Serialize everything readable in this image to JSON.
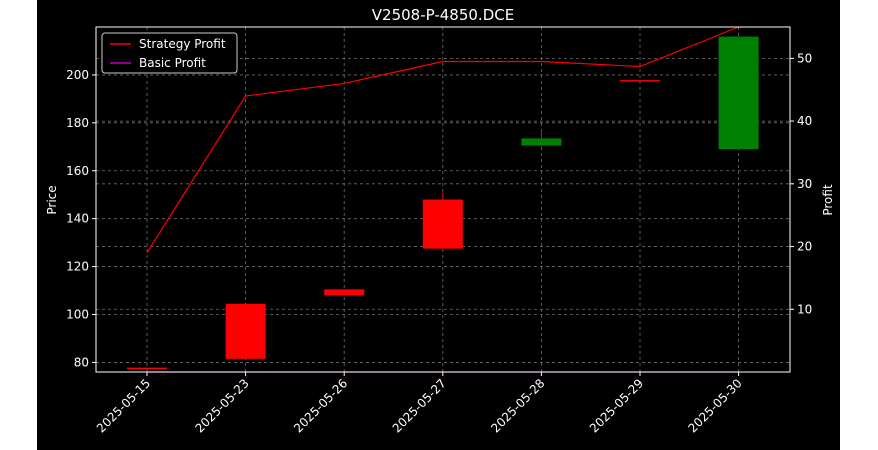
{
  "chart_data": {
    "type": "candlestick+line",
    "title": "V2508-P-4850.DCE",
    "ylabel_left": "Price",
    "ylabel_right": "Profit",
    "categories": [
      "2025-05-15",
      "2025-05-23",
      "2025-05-26",
      "2025-05-27",
      "2025-05-28",
      "2025-05-29",
      "2025-05-30"
    ],
    "price_ylim": [
      76,
      220
    ],
    "price_ticks": [
      80,
      100,
      120,
      140,
      160,
      180,
      200
    ],
    "profit_ylim": [
      0,
      55
    ],
    "profit_ticks": [
      10,
      20,
      30,
      40,
      50
    ],
    "candles": [
      {
        "date": "2025-05-15",
        "open": 77.5,
        "close": 77.5,
        "high": 77.5,
        "low": 77.5,
        "color": "#ff0000"
      },
      {
        "date": "2025-05-23",
        "open": 104.5,
        "close": 81.5,
        "high": 104.5,
        "low": 81.5,
        "color": "#ff0000"
      },
      {
        "date": "2025-05-26",
        "open": 110.5,
        "close": 108,
        "high": 110.5,
        "low": 108,
        "color": "#ff0000"
      },
      {
        "date": "2025-05-27",
        "open": 148,
        "close": 127.5,
        "high": 151,
        "low": 127.5,
        "color": "#ff0000"
      },
      {
        "date": "2025-05-28",
        "open": 170.5,
        "close": 173.5,
        "high": 176,
        "low": 170.5,
        "color": "#008000"
      },
      {
        "date": "2025-05-29",
        "open": 197.5,
        "close": 197.5,
        "high": 197.5,
        "low": 197.5,
        "color": "#ff0000"
      },
      {
        "date": "2025-05-30",
        "open": 169,
        "close": 216,
        "high": 216,
        "low": 169,
        "color": "#008000"
      }
    ],
    "series": [
      {
        "name": "Strategy Profit",
        "color": "#ff0000",
        "values": [
          19,
          44,
          46,
          49.5,
          49.5,
          48.7,
          55
        ]
      },
      {
        "name": "Basic Profit",
        "color": "#bf00bf",
        "values": [
          0,
          0,
          0,
          0,
          0,
          0,
          0
        ]
      }
    ],
    "legend_position": "top-left",
    "grid": true
  }
}
